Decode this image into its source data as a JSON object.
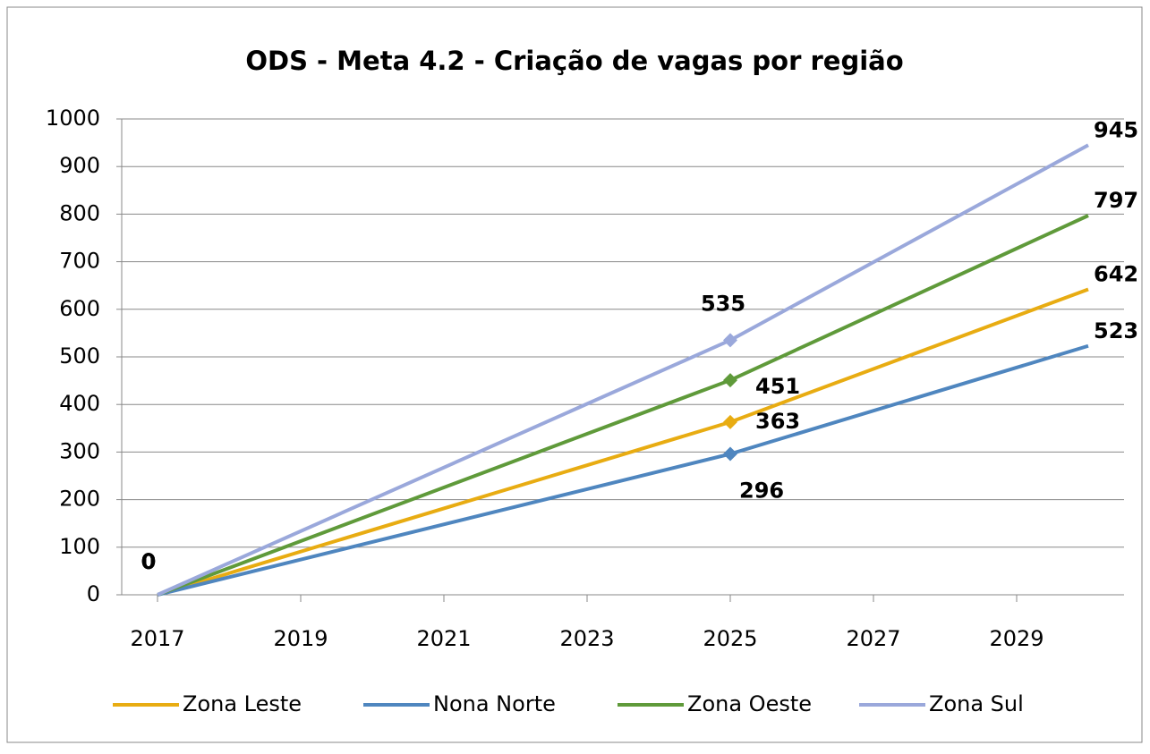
{
  "chart_data": {
    "type": "line",
    "title": "ODS - Meta 4.2 - Criação de vagas por região",
    "x": [
      2017,
      2025,
      2030
    ],
    "xlim": [
      2016.5,
      2030.5
    ],
    "xticks": [
      2017,
      2019,
      2021,
      2023,
      2025,
      2027,
      2029
    ],
    "ylim": [
      0,
      1000
    ],
    "yticks": [
      0,
      100,
      200,
      300,
      400,
      500,
      600,
      700,
      800,
      900,
      1000
    ],
    "grid": true,
    "legend": "bottom",
    "series": [
      {
        "name": "Zona Leste",
        "color": "#e8ac12",
        "values": [
          0,
          363,
          642
        ]
      },
      {
        "name": "Nona Norte",
        "color": "#4f86bf",
        "values": [
          0,
          296,
          523
        ]
      },
      {
        "name": "Zona Oeste",
        "color": "#5f9a3a",
        "values": [
          0,
          451,
          797
        ]
      },
      {
        "name": "Zona Sul",
        "color": "#9aa8db",
        "values": [
          0,
          535,
          945
        ]
      }
    ]
  }
}
